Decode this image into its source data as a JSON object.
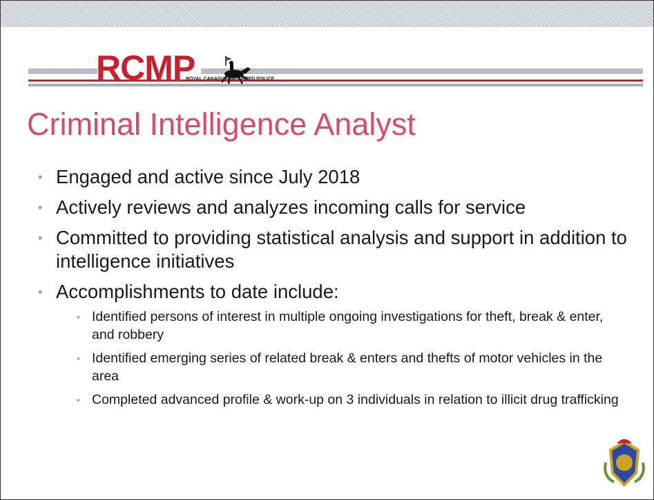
{
  "header": {
    "logo": "RCMP",
    "tagline": "ROYAL CANADIAN MOUNTED POLICE"
  },
  "slide": {
    "title": "Criminal Intelligence Analyst",
    "bullets": [
      {
        "text": "Engaged and active since July 2018"
      },
      {
        "text": "Actively reviews and analyzes incoming calls for service"
      },
      {
        "text": "Committed to providing statistical analysis and support in addition to intelligence initiatives"
      },
      {
        "text": "Accomplishments to date include:",
        "subbullets": [
          "Identified persons of interest in multiple ongoing investigations for theft, break & enter, and robbery",
          "Identified emerging series of related break & enters and thefts of motor vehicles in the area",
          "Completed advanced profile & work-up on 3 individuals in relation to illicit drug trafficking"
        ]
      }
    ]
  }
}
